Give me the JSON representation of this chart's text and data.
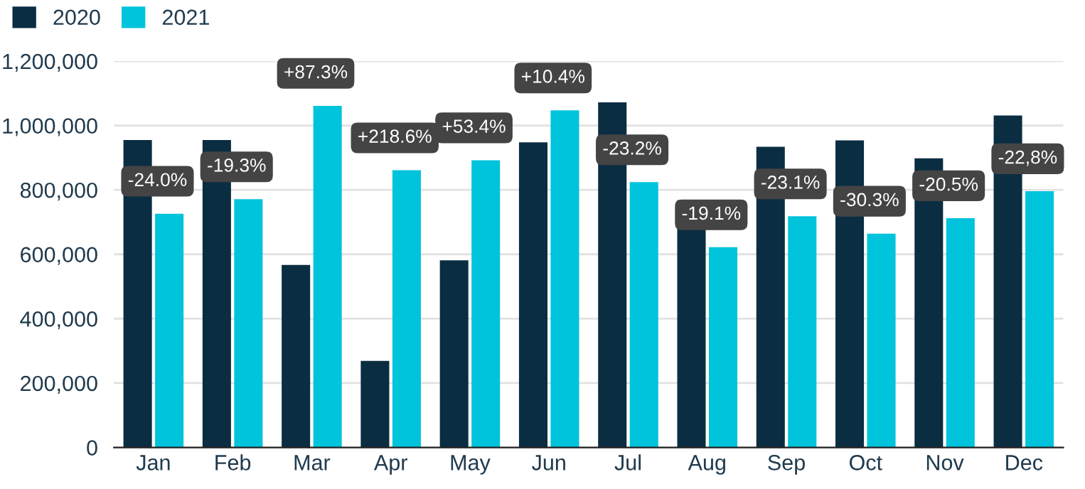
{
  "chart_data": {
    "type": "bar",
    "categories": [
      "Jan",
      "Feb",
      "Mar",
      "Apr",
      "May",
      "Jun",
      "Jul",
      "Aug",
      "Sep",
      "Oct",
      "Nov",
      "Dec"
    ],
    "series": [
      {
        "name": "2020",
        "color": "#0b2d42",
        "values": [
          955000,
          955000,
          567000,
          269000,
          581000,
          948000,
          1072000,
          768000,
          934000,
          954000,
          898000,
          1031000
        ]
      },
      {
        "name": "2021",
        "color": "#00c3dc",
        "values": [
          726000,
          771000,
          1061000,
          861000,
          892000,
          1047000,
          824000,
          622000,
          718000,
          664000,
          712000,
          796000
        ]
      }
    ],
    "annotations": [
      {
        "text": "-24.0%",
        "x": "Jan",
        "y": 726000
      },
      {
        "text": "-19.3%",
        "x": "Feb",
        "y": 771000
      },
      {
        "text": "+87.3%",
        "x": "Mar",
        "y": 1061000
      },
      {
        "text": "+218.6%",
        "x": "Apr",
        "y": 861000
      },
      {
        "text": "+53.4%",
        "x": "May",
        "y": 892000
      },
      {
        "text": "+10.4%",
        "x": "Jun",
        "y": 1047000
      },
      {
        "text": "-23.2%",
        "x": "Jul",
        "y": 824000
      },
      {
        "text": "-19.1%",
        "x": "Aug",
        "y": 622000
      },
      {
        "text": "-23.1%",
        "x": "Sep",
        "y": 718000
      },
      {
        "text": "-30.3%",
        "x": "Oct",
        "y": 664000
      },
      {
        "text": "-20.5%",
        "x": "Nov",
        "y": 712000
      },
      {
        "text": "-22,8%",
        "x": "Dec",
        "y": 796000
      }
    ],
    "ylim": [
      0,
      1200000
    ],
    "yticks": [
      0,
      {
        "value": 200000,
        "label": "200,000"
      },
      {
        "value": 400000,
        "label": "400,000"
      },
      {
        "value": 600000,
        "label": "600,000"
      },
      {
        "value": 800000,
        "label": "800,000"
      },
      {
        "value": 1000000,
        "label": "1,000,000"
      },
      {
        "value": 1200000,
        "label": "1,200,000"
      }
    ],
    "grid": "y",
    "legend": "top left"
  }
}
